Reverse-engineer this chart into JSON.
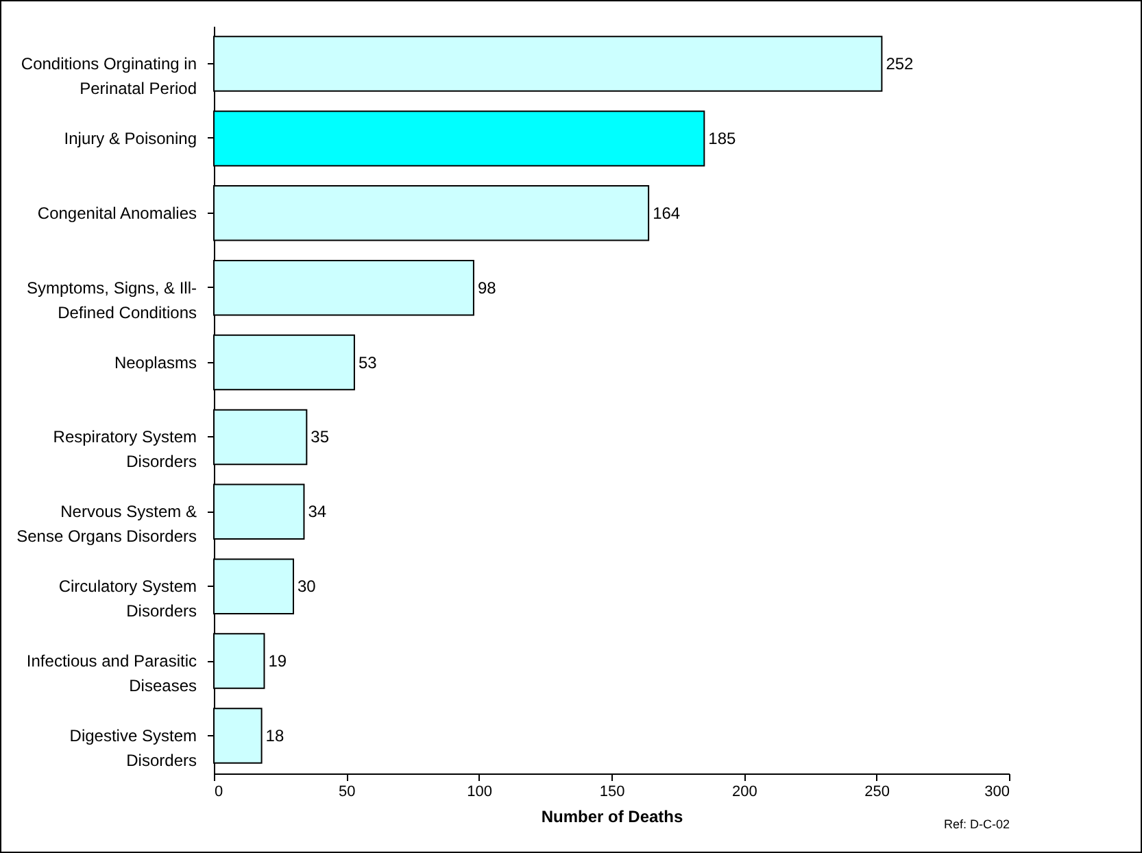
{
  "chart_data": {
    "type": "bar",
    "orientation": "horizontal",
    "xlabel": "Number of Deaths",
    "categories": [
      "Conditions Orginating in\nPerinatal Period",
      "Injury & Poisoning",
      "Congenital Anomalies",
      "Symptoms, Signs, & Ill-\nDefined Conditions",
      "Neoplasms",
      "Respiratory System\nDisorders",
      "Nervous System &\nSense Organs Disorders",
      "Circulatory System\nDisorders",
      "Infectious and Parasitic\nDiseases",
      "Digestive System\nDisorders"
    ],
    "values": [
      252,
      185,
      164,
      98,
      53,
      35,
      34,
      30,
      19,
      18
    ],
    "colors": [
      "#ccffff",
      "#00ffff",
      "#ccffff",
      "#ccffff",
      "#ccffff",
      "#ccffff",
      "#ccffff",
      "#ccffff",
      "#ccffff",
      "#ccffff"
    ],
    "xlim": [
      0,
      300
    ],
    "xticks": [
      0,
      50,
      100,
      150,
      200,
      250,
      300
    ],
    "data_labels": true,
    "grid": false,
    "annotations": [
      "Ref: D-C-02"
    ]
  }
}
